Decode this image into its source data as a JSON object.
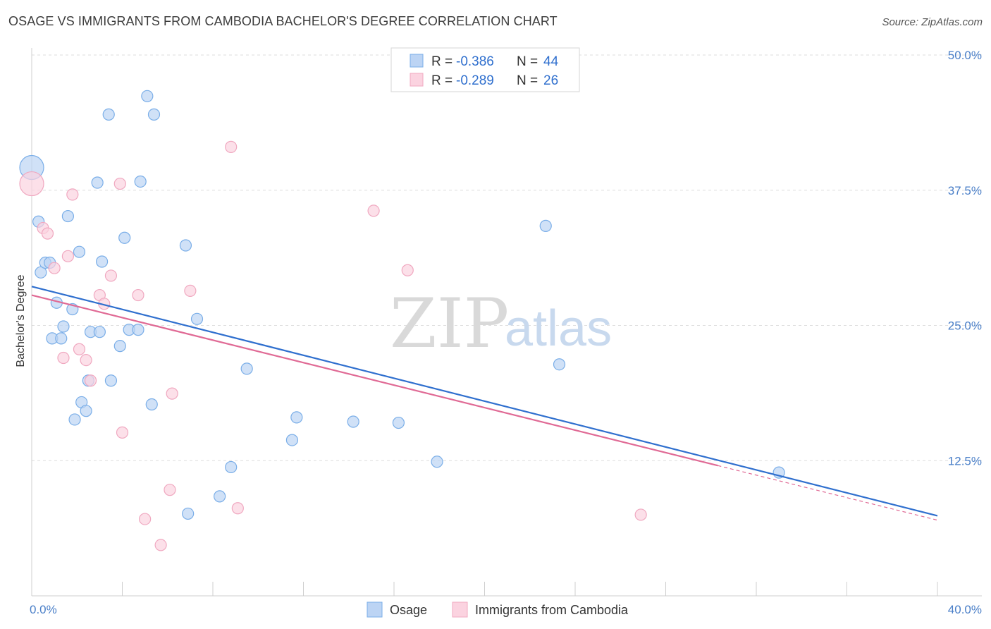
{
  "header": {
    "title": "OSAGE VS IMMIGRANTS FROM CAMBODIA BACHELOR'S DEGREE CORRELATION CHART",
    "source": "Source: ZipAtlas.com"
  },
  "watermark": {
    "zip": "ZIP",
    "atlas": "atlas"
  },
  "chart_data": {
    "type": "scatter",
    "xlabel": "",
    "ylabel": "Bachelor's Degree",
    "xlim": [
      0,
      40
    ],
    "ylim": [
      0,
      50
    ],
    "x_tick_labels": [
      {
        "value": 0,
        "label": "0.0%"
      },
      {
        "value": 40,
        "label": "40.0%"
      }
    ],
    "y_tick_labels": [
      {
        "value": 12.5,
        "label": "12.5%"
      },
      {
        "value": 25,
        "label": "25.0%"
      },
      {
        "value": 37.5,
        "label": "37.5%"
      },
      {
        "value": 50,
        "label": "50.0%"
      }
    ],
    "grid": true,
    "legend_position": "top-center",
    "series": [
      {
        "name": "Osage",
        "color": "#7aaee8",
        "fill": "#bcd4f4",
        "line_color": "#2f6fce",
        "r_label": "R = ",
        "r_value": "-0.386",
        "n_label": "N = ",
        "n_value": "44",
        "trend": {
          "x0": 0,
          "y0": 28.6,
          "x1": 40,
          "y1": 7.4,
          "dashed_from": null
        },
        "points": [
          [
            0.0,
            39.6,
            "big"
          ],
          [
            0.3,
            34.6
          ],
          [
            0.4,
            29.9
          ],
          [
            0.6,
            30.8
          ],
          [
            0.8,
            30.8
          ],
          [
            0.9,
            23.8
          ],
          [
            1.1,
            27.1
          ],
          [
            1.3,
            23.8
          ],
          [
            1.4,
            24.9
          ],
          [
            1.6,
            35.1
          ],
          [
            1.8,
            26.5
          ],
          [
            1.9,
            16.3
          ],
          [
            2.1,
            31.8
          ],
          [
            2.2,
            17.9
          ],
          [
            2.4,
            17.1
          ],
          [
            2.5,
            19.9
          ],
          [
            2.6,
            24.4
          ],
          [
            2.9,
            38.2
          ],
          [
            3.1,
            30.9
          ],
          [
            3.0,
            24.4
          ],
          [
            3.4,
            44.5
          ],
          [
            3.5,
            19.9
          ],
          [
            3.9,
            23.1
          ],
          [
            4.1,
            33.1
          ],
          [
            4.3,
            24.6
          ],
          [
            4.7,
            24.6
          ],
          [
            4.8,
            38.3
          ],
          [
            5.1,
            46.2
          ],
          [
            5.3,
            17.7
          ],
          [
            5.4,
            44.5
          ],
          [
            6.8,
            32.4
          ],
          [
            6.9,
            7.6
          ],
          [
            7.3,
            25.6
          ],
          [
            8.3,
            9.2
          ],
          [
            8.8,
            11.9
          ],
          [
            9.5,
            21.0
          ],
          [
            11.5,
            14.4
          ],
          [
            11.7,
            16.5
          ],
          [
            14.2,
            16.1
          ],
          [
            16.2,
            16.0
          ],
          [
            17.9,
            12.4
          ],
          [
            22.7,
            34.2
          ],
          [
            23.3,
            21.4
          ],
          [
            33.0,
            11.4
          ]
        ]
      },
      {
        "name": "Immigrants from Cambodia",
        "color": "#f0a8c0",
        "fill": "#fbd3e0",
        "line_color": "#e06a95",
        "r_label": "R = ",
        "r_value": "-0.289",
        "n_label": "N = ",
        "n_value": "26",
        "trend": {
          "x0": 0,
          "y0": 27.8,
          "x1": 40,
          "y1": 7.0,
          "dashed_from": 30.3
        },
        "points": [
          [
            0.0,
            38.1,
            "big"
          ],
          [
            0.5,
            34.0
          ],
          [
            0.7,
            33.5
          ],
          [
            1.0,
            30.3
          ],
          [
            1.4,
            22.0
          ],
          [
            1.6,
            31.4
          ],
          [
            1.8,
            37.1
          ],
          [
            2.1,
            22.8
          ],
          [
            2.4,
            21.8
          ],
          [
            2.6,
            19.9
          ],
          [
            3.0,
            27.8
          ],
          [
            3.2,
            27.0
          ],
          [
            3.5,
            29.6
          ],
          [
            3.9,
            38.1
          ],
          [
            4.0,
            15.1
          ],
          [
            4.7,
            27.8
          ],
          [
            5.0,
            7.1
          ],
          [
            5.7,
            4.7
          ],
          [
            6.1,
            9.8
          ],
          [
            6.2,
            18.7
          ],
          [
            7.0,
            28.2
          ],
          [
            8.8,
            41.5
          ],
          [
            9.1,
            8.1
          ],
          [
            15.1,
            35.6
          ],
          [
            16.6,
            30.1
          ],
          [
            26.9,
            7.5
          ]
        ]
      }
    ]
  }
}
